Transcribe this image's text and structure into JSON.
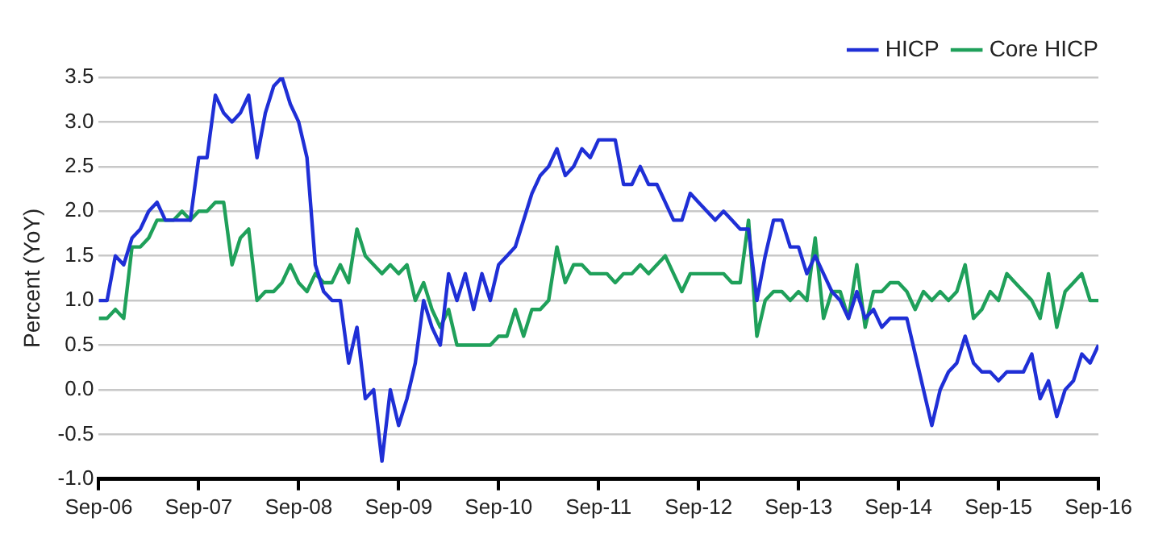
{
  "chart_data": {
    "type": "line",
    "ylabel": "Percent (YoY)",
    "x": [
      "2006-09",
      "2006-10",
      "2006-11",
      "2006-12",
      "2007-01",
      "2007-02",
      "2007-03",
      "2007-04",
      "2007-05",
      "2007-06",
      "2007-07",
      "2007-08",
      "2007-09",
      "2007-10",
      "2007-11",
      "2007-12",
      "2008-01",
      "2008-02",
      "2008-03",
      "2008-04",
      "2008-05",
      "2008-06",
      "2008-07",
      "2008-08",
      "2008-09",
      "2008-10",
      "2008-11",
      "2008-12",
      "2009-01",
      "2009-02",
      "2009-03",
      "2009-04",
      "2009-05",
      "2009-06",
      "2009-07",
      "2009-08",
      "2009-09",
      "2009-10",
      "2009-11",
      "2009-12",
      "2010-01",
      "2010-02",
      "2010-03",
      "2010-04",
      "2010-05",
      "2010-06",
      "2010-07",
      "2010-08",
      "2010-09",
      "2010-10",
      "2010-11",
      "2010-12",
      "2011-01",
      "2011-02",
      "2011-03",
      "2011-04",
      "2011-05",
      "2011-06",
      "2011-07",
      "2011-08",
      "2011-09",
      "2011-10",
      "2011-11",
      "2011-12",
      "2012-01",
      "2012-02",
      "2012-03",
      "2012-04",
      "2012-05",
      "2012-06",
      "2012-07",
      "2012-08",
      "2012-09",
      "2012-10",
      "2012-11",
      "2012-12",
      "2013-01",
      "2013-02",
      "2013-03",
      "2013-04",
      "2013-05",
      "2013-06",
      "2013-07",
      "2013-08",
      "2013-09",
      "2013-10",
      "2013-11",
      "2013-12",
      "2014-01",
      "2014-02",
      "2014-03",
      "2014-04",
      "2014-05",
      "2014-06",
      "2014-07",
      "2014-08",
      "2014-09",
      "2014-10",
      "2014-11",
      "2014-12",
      "2015-01",
      "2015-02",
      "2015-03",
      "2015-04",
      "2015-05",
      "2015-06",
      "2015-07",
      "2015-08",
      "2015-09",
      "2015-10",
      "2015-11",
      "2015-12",
      "2016-01",
      "2016-02",
      "2016-03",
      "2016-04",
      "2016-05",
      "2016-06",
      "2016-07",
      "2016-08",
      "2016-09"
    ],
    "series": [
      {
        "name": "HICP",
        "color": "#1f2fd6",
        "values": [
          1.0,
          1.0,
          1.5,
          1.4,
          1.7,
          1.8,
          2.0,
          2.1,
          1.9,
          1.9,
          1.9,
          1.9,
          2.6,
          2.6,
          3.3,
          3.1,
          3.0,
          3.1,
          3.3,
          2.6,
          3.1,
          3.4,
          3.5,
          3.2,
          3.0,
          2.6,
          1.4,
          1.1,
          1.0,
          1.0,
          0.3,
          0.7,
          -0.1,
          0.0,
          -0.8,
          0.0,
          -0.4,
          -0.1,
          0.3,
          1.0,
          0.7,
          0.5,
          1.3,
          1.0,
          1.3,
          0.9,
          1.3,
          1.0,
          1.4,
          1.5,
          1.6,
          1.9,
          2.2,
          2.4,
          2.5,
          2.7,
          2.4,
          2.5,
          2.7,
          2.6,
          2.8,
          2.8,
          2.8,
          2.3,
          2.3,
          2.5,
          2.3,
          2.3,
          2.1,
          1.9,
          1.9,
          2.2,
          2.1,
          2.0,
          1.9,
          2.0,
          1.9,
          1.8,
          1.8,
          1.0,
          1.5,
          1.9,
          1.9,
          1.6,
          1.6,
          1.3,
          1.5,
          1.3,
          1.1,
          1.0,
          0.8,
          1.1,
          0.8,
          0.9,
          0.7,
          0.8,
          0.8,
          0.8,
          0.4,
          0.0,
          -0.4,
          0.0,
          0.2,
          0.3,
          0.6,
          0.3,
          0.2,
          0.2,
          0.1,
          0.2,
          0.2,
          0.2,
          0.4,
          -0.1,
          0.1,
          -0.3,
          0.0,
          0.1,
          0.4,
          0.3,
          0.5
        ]
      },
      {
        "name": "Core HICP",
        "color": "#1fa05a",
        "values": [
          0.8,
          0.8,
          0.9,
          0.8,
          1.6,
          1.6,
          1.7,
          1.9,
          1.9,
          1.9,
          2.0,
          1.9,
          2.0,
          2.0,
          2.1,
          2.1,
          1.4,
          1.7,
          1.8,
          1.0,
          1.1,
          1.1,
          1.2,
          1.4,
          1.2,
          1.1,
          1.3,
          1.2,
          1.2,
          1.4,
          1.2,
          1.8,
          1.5,
          1.4,
          1.3,
          1.4,
          1.3,
          1.4,
          1.0,
          1.2,
          0.9,
          0.7,
          0.9,
          0.5,
          0.5,
          0.5,
          0.5,
          0.5,
          0.6,
          0.6,
          0.9,
          0.6,
          0.9,
          0.9,
          1.0,
          1.6,
          1.2,
          1.4,
          1.4,
          1.3,
          1.3,
          1.3,
          1.2,
          1.3,
          1.3,
          1.4,
          1.3,
          1.4,
          1.5,
          1.3,
          1.1,
          1.3,
          1.3,
          1.3,
          1.3,
          1.3,
          1.2,
          1.2,
          1.9,
          0.6,
          1.0,
          1.1,
          1.1,
          1.0,
          1.1,
          1.0,
          1.7,
          0.8,
          1.1,
          1.1,
          0.8,
          1.4,
          0.7,
          1.1,
          1.1,
          1.2,
          1.2,
          1.1,
          0.9,
          1.1,
          1.0,
          1.1,
          1.0,
          1.1,
          1.4,
          0.8,
          0.9,
          1.1,
          1.0,
          1.3,
          1.2,
          1.1,
          1.0,
          0.8,
          1.3,
          0.7,
          1.1,
          1.2,
          1.3,
          1.0,
          1.0
        ]
      }
    ],
    "xlim": [
      "2006-09",
      "2016-09"
    ],
    "xticks": [
      {
        "value": "2006-09",
        "label": "Sep-06"
      },
      {
        "value": "2007-09",
        "label": "Sep-07"
      },
      {
        "value": "2008-09",
        "label": "Sep-08"
      },
      {
        "value": "2009-09",
        "label": "Sep-09"
      },
      {
        "value": "2010-09",
        "label": "Sep-10"
      },
      {
        "value": "2011-09",
        "label": "Sep-11"
      },
      {
        "value": "2012-09",
        "label": "Sep-12"
      },
      {
        "value": "2013-09",
        "label": "Sep-13"
      },
      {
        "value": "2014-09",
        "label": "Sep-14"
      },
      {
        "value": "2015-09",
        "label": "Sep-15"
      },
      {
        "value": "2016-09",
        "label": "Sep-16"
      }
    ],
    "ylim": [
      -1,
      3.5
    ],
    "yticks": [
      {
        "value": -1,
        "label": "-1.0"
      },
      {
        "value": -0.5,
        "label": "-0.5"
      },
      {
        "value": 0,
        "label": "0.0"
      },
      {
        "value": 0.5,
        "label": "0.5"
      },
      {
        "value": 1,
        "label": "1.0"
      },
      {
        "value": 1.5,
        "label": "1.5"
      },
      {
        "value": 2,
        "label": "2.0"
      },
      {
        "value": 2.5,
        "label": "2.5"
      },
      {
        "value": 3,
        "label": "3.0"
      },
      {
        "value": 3.5,
        "label": "3.5"
      }
    ],
    "grid": "y",
    "legend": "top right",
    "marker": "none",
    "line_style": "solid"
  }
}
